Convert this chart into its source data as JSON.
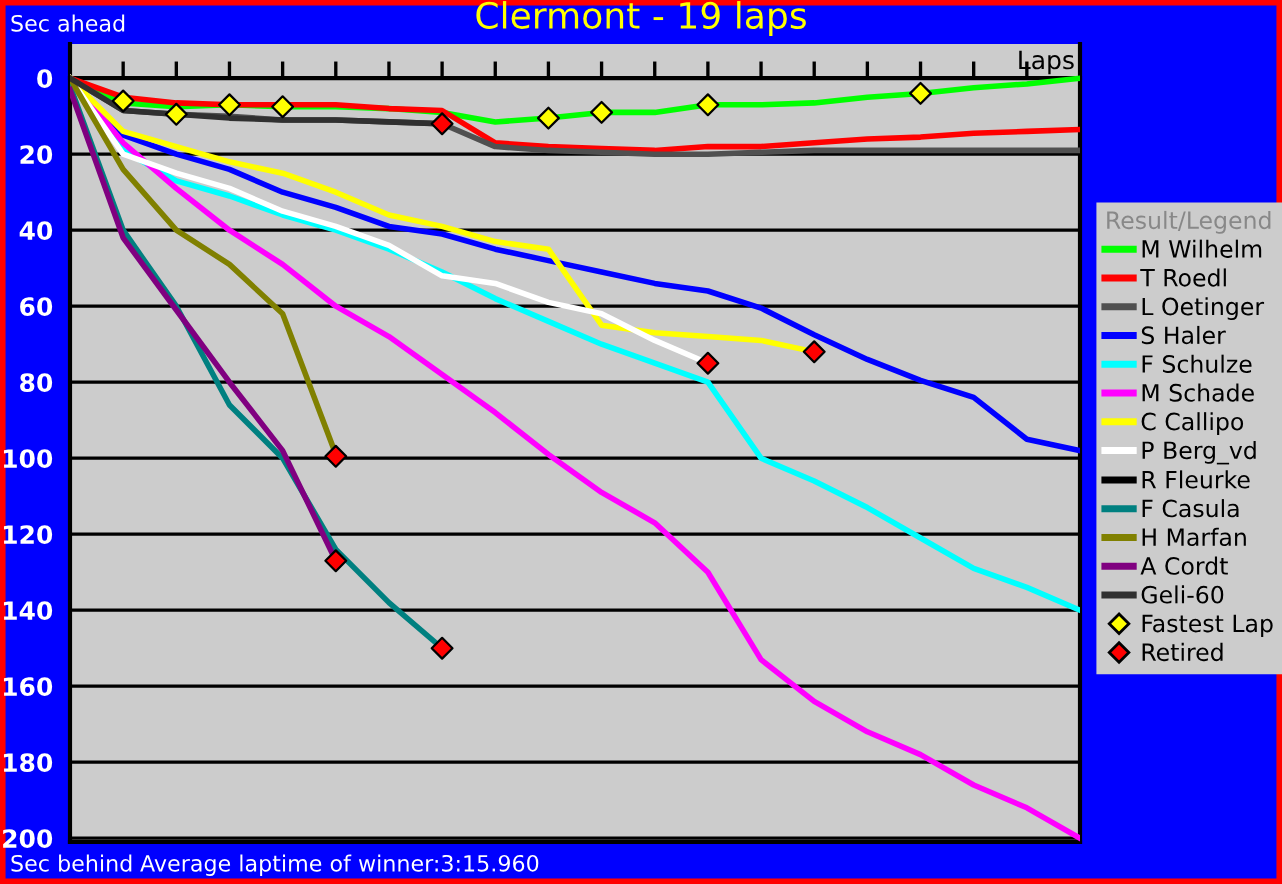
{
  "chart_data": {
    "type": "line",
    "title": "Clermont - 19 laps",
    "xlabel": "Laps",
    "ylabel": "Sec ahead",
    "legend_title": "Result/Legend",
    "annotations": [
      "Sec behind",
      "Average laptime of winner:3:15.960"
    ],
    "categories": [
      null,
      null,
      null,
      null,
      null,
      null,
      null,
      null,
      null,
      null,
      null,
      null,
      null,
      null,
      null,
      null,
      null,
      null,
      null,
      null
    ],
    "ylim": [
      201,
      -9
    ],
    "yticks": [
      0,
      20,
      40,
      60,
      80,
      100,
      120,
      140,
      160,
      180,
      200
    ],
    "tick_labels": "y",
    "grid": "y",
    "legend": "right",
    "marker": "none",
    "line_style": "solid",
    "series": [
      {
        "name": "M Wilhelm",
        "color": "#00ff00",
        "values": [
          0,
          6.5,
          7.5,
          7,
          7.5,
          7.5,
          8,
          9,
          11.5,
          10.5,
          9,
          9,
          7,
          7,
          6.5,
          5,
          4,
          2.5,
          1.5,
          0
        ]
      },
      {
        "name": "T Roedl",
        "color": "#ff0000",
        "values": [
          0,
          5,
          6.5,
          7,
          7,
          7,
          8,
          8.5,
          17,
          18,
          18.5,
          19,
          18,
          18,
          17,
          16,
          15.5,
          14.5,
          14,
          13.5
        ]
      },
      {
        "name": "L Oetinger",
        "color": "#505050",
        "values": [
          0,
          8.5,
          9.5,
          10,
          11,
          11,
          11.5,
          12,
          18,
          19,
          19.5,
          20,
          20,
          19.5,
          19,
          19,
          19,
          19,
          19,
          19
        ]
      },
      {
        "name": "S Haler",
        "color": "#0000ff",
        "values": [
          0,
          15,
          20,
          24,
          30,
          34,
          39,
          41,
          45,
          48,
          51,
          54,
          56,
          60.5,
          67.5,
          74,
          79.5,
          84,
          95,
          98
        ]
      },
      {
        "name": "F Schulze",
        "color": "#00ffff",
        "values": [
          0,
          19,
          27,
          31,
          36,
          40,
          45,
          51,
          58,
          64,
          70,
          75,
          80,
          100,
          106,
          113,
          121,
          129,
          134,
          140
        ]
      },
      {
        "name": "M Schade",
        "color": "#ff00ff",
        "values": [
          0,
          17,
          29,
          40,
          49,
          60,
          68,
          78,
          88,
          99,
          109,
          117,
          130,
          153,
          164,
          172,
          178,
          186,
          192,
          200
        ]
      },
      {
        "name": "C Callipo",
        "color": "#ffff00",
        "values": [
          0,
          14,
          18,
          22,
          25,
          30,
          36,
          39,
          43,
          45,
          65,
          67,
          68,
          69,
          72,
          null,
          null,
          null,
          null,
          null
        ]
      },
      {
        "name": "P Berg_vd",
        "color": "#ffffff",
        "values": [
          0,
          20,
          25,
          29,
          35,
          39,
          44,
          52,
          54,
          59,
          62,
          69,
          75,
          null,
          null,
          null,
          null,
          null,
          null,
          null
        ]
      },
      {
        "name": "R Fleurke",
        "color": "#000000",
        "values": [
          null,
          null,
          null,
          null,
          null,
          null,
          null,
          null,
          null,
          null,
          null,
          null,
          null,
          null,
          null,
          null,
          null,
          null,
          null,
          null
        ]
      },
      {
        "name": "F Casula",
        "color": "#008080",
        "values": [
          2,
          40,
          60,
          86,
          100,
          124,
          138,
          150,
          null,
          null,
          null,
          null,
          null,
          null,
          null,
          null,
          null,
          null,
          null,
          null
        ]
      },
      {
        "name": "H Marfan",
        "color": "#808000",
        "values": [
          0,
          24,
          40,
          49,
          62,
          99,
          null,
          null,
          null,
          null,
          null,
          null,
          null,
          null,
          null,
          null,
          null,
          null,
          null,
          null
        ]
      },
      {
        "name": "A Cordt",
        "color": "#800080",
        "values": [
          3,
          42,
          61,
          80,
          98,
          127,
          null,
          null,
          null,
          null,
          null,
          null,
          null,
          null,
          null,
          null,
          null,
          null,
          null,
          null
        ]
      },
      {
        "name": "Geli-60",
        "color": "#303030",
        "values": [
          0,
          8.5,
          9.5,
          10.5,
          11,
          11,
          11.5,
          12,
          null,
          null,
          null,
          null,
          null,
          null,
          null,
          null,
          null,
          null,
          null,
          null
        ]
      },
      {
        "name": "Fastest Lap",
        "type": "scatter",
        "marker": "diamond",
        "color": "#ffff00",
        "values": [
          null,
          6,
          9.5,
          7,
          7.5,
          null,
          null,
          null,
          null,
          10.5,
          9,
          null,
          7,
          null,
          null,
          null,
          4,
          null,
          null,
          null
        ]
      },
      {
        "name": "Retired",
        "type": "scatter",
        "marker": "diamond",
        "color": "#ff0000",
        "values": [
          null,
          null,
          null,
          null,
          null,
          null,
          null,
          12,
          null,
          null,
          null,
          null,
          75,
          null,
          72,
          null,
          null,
          null,
          null,
          null
        ]
      },
      {
        "type": "scatter",
        "marker": "diamond",
        "color": "#ff0000",
        "values": [
          null,
          null,
          null,
          null,
          null,
          99.5,
          null,
          150,
          null,
          null,
          null,
          null,
          null,
          null,
          null,
          null,
          null,
          null,
          null,
          null
        ]
      },
      {
        "type": "scatter",
        "marker": "diamond",
        "color": "#ff0000",
        "values": [
          null,
          null,
          null,
          null,
          null,
          127,
          null,
          null,
          null,
          null,
          null,
          null,
          null,
          null,
          null,
          null,
          null,
          null,
          null,
          null
        ]
      }
    ]
  }
}
